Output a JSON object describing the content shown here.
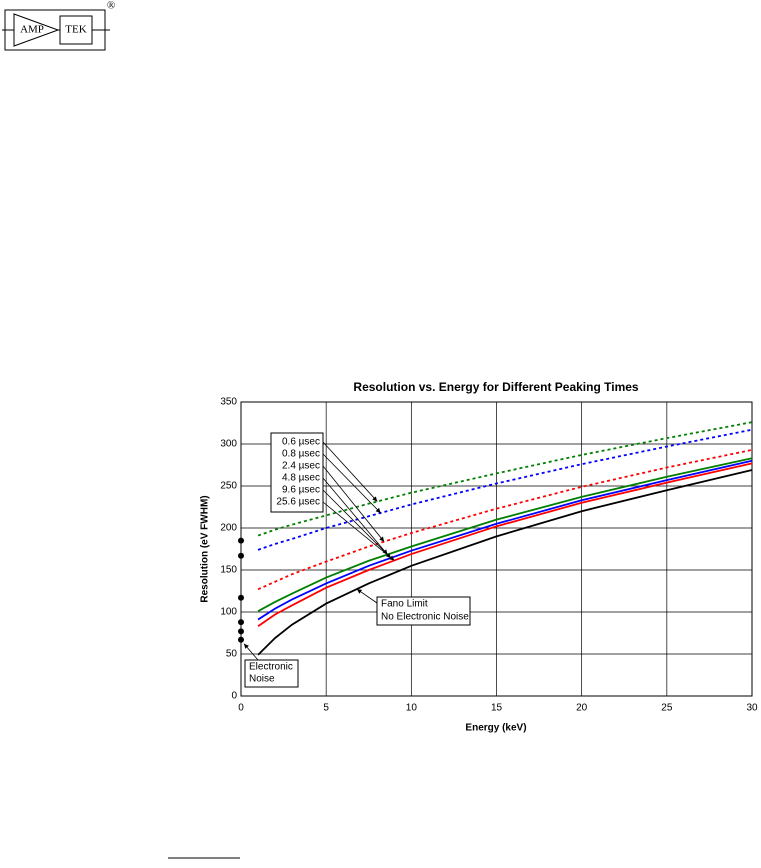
{
  "logo": {
    "left": "AMP",
    "right": "TEK",
    "mark": "®"
  },
  "chart_data": {
    "type": "line",
    "title": "Resolution vs. Energy for Different Peaking Times",
    "xlabel": "Energy (keV)",
    "ylabel": "Resolution (eV FWHM)",
    "x": [
      1,
      2,
      3,
      5,
      7.5,
      10,
      15,
      20,
      25,
      30
    ],
    "series": [
      {
        "name": "0.6 µsec",
        "color": "#007f00",
        "dash": true,
        "values": [
          191,
          198,
          204,
          215,
          229,
          242,
          265,
          287,
          307,
          326
        ]
      },
      {
        "name": "0.8 µsec",
        "color": "#0000ff",
        "dash": true,
        "values": [
          174,
          181,
          187,
          200,
          214,
          228,
          253,
          276,
          297,
          317
        ]
      },
      {
        "name": "2.4 µsec",
        "color": "#ff0000",
        "dash": true,
        "values": [
          127,
          136,
          145,
          160,
          178,
          194,
          223,
          249,
          272,
          293
        ]
      },
      {
        "name": "4.8 µsec",
        "color": "#007f00",
        "dash": false,
        "values": [
          101,
          112,
          122,
          141,
          161,
          178,
          210,
          237,
          261,
          283
        ]
      },
      {
        "name": "9.6 µsec",
        "color": "#0000ff",
        "dash": false,
        "values": [
          91,
          104,
          115,
          134,
          155,
          173,
          205,
          233,
          257,
          280
        ]
      },
      {
        "name": "25.6 µsec",
        "color": "#ff0000",
        "dash": false,
        "values": [
          83,
          97,
          108,
          129,
          150,
          169,
          202,
          230,
          254,
          277
        ]
      },
      {
        "name": "Fano Limit",
        "color": "#000000",
        "dash": false,
        "values": [
          49,
          69,
          85,
          110,
          134,
          155,
          190,
          220,
          245,
          269
        ]
      }
    ],
    "fano_note": "No Electronic Noise",
    "noise": {
      "label": [
        "Electronic",
        "Noise"
      ],
      "x": [
        0,
        0,
        0,
        0,
        0,
        0
      ],
      "values": [
        185,
        167,
        117,
        88,
        77,
        67
      ],
      "color": "#000000"
    },
    "xlim": [
      0,
      30
    ],
    "xticks": [
      0,
      5,
      10,
      15,
      20,
      25,
      30
    ],
    "ylim": [
      0,
      350
    ],
    "yticks": [
      0,
      50,
      100,
      150,
      200,
      250,
      300,
      350
    ],
    "grid": true
  }
}
